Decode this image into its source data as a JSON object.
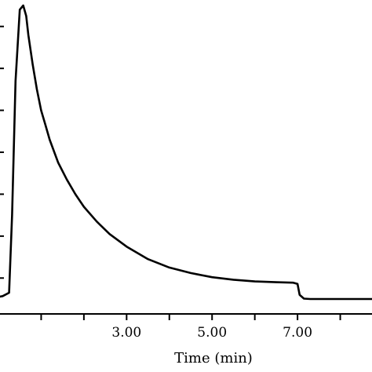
{
  "chart_data": {
    "type": "line",
    "title": "",
    "xlabel": "Time (min)",
    "ylabel": "",
    "xlim": [
      0.0,
      9.0
    ],
    "ylim": [
      0,
      7.0
    ],
    "x_ticks": [
      1.0,
      2.0,
      3.0,
      4.0,
      5.0,
      6.0,
      7.0,
      8.0
    ],
    "x_tick_labels": [
      "3.00",
      "5.00",
      "7.00"
    ],
    "x_tick_labels_at": [
      3.0,
      5.0,
      7.0
    ],
    "y_ticks": [
      0.5,
      1.5,
      2.5,
      3.5,
      4.5,
      5.5,
      6.5
    ],
    "grid": false,
    "legend": "none",
    "series": [
      {
        "x": [
          0.0,
          0.1,
          0.25,
          0.32,
          0.4,
          0.5,
          0.58,
          0.65,
          0.7,
          0.8,
          0.9,
          1.0,
          1.1,
          1.2,
          1.4,
          1.6,
          1.8,
          2.0,
          2.3,
          2.6,
          3.0,
          3.5,
          4.0,
          4.5,
          5.0,
          5.5,
          6.0,
          6.5,
          6.9,
          7.0,
          7.05,
          7.15,
          7.3,
          8.0,
          9.0
        ],
        "y": [
          0.05,
          0.07,
          0.15,
          2.0,
          5.2,
          6.9,
          7.0,
          6.75,
          6.3,
          5.6,
          5.0,
          4.5,
          4.15,
          3.8,
          3.25,
          2.85,
          2.5,
          2.2,
          1.85,
          1.55,
          1.25,
          0.95,
          0.75,
          0.62,
          0.52,
          0.46,
          0.42,
          0.4,
          0.39,
          0.36,
          0.1,
          0.01,
          0.0,
          0.0,
          0.0
        ]
      }
    ],
    "colors": {
      "line": "#000000",
      "axis": "#000000"
    }
  }
}
